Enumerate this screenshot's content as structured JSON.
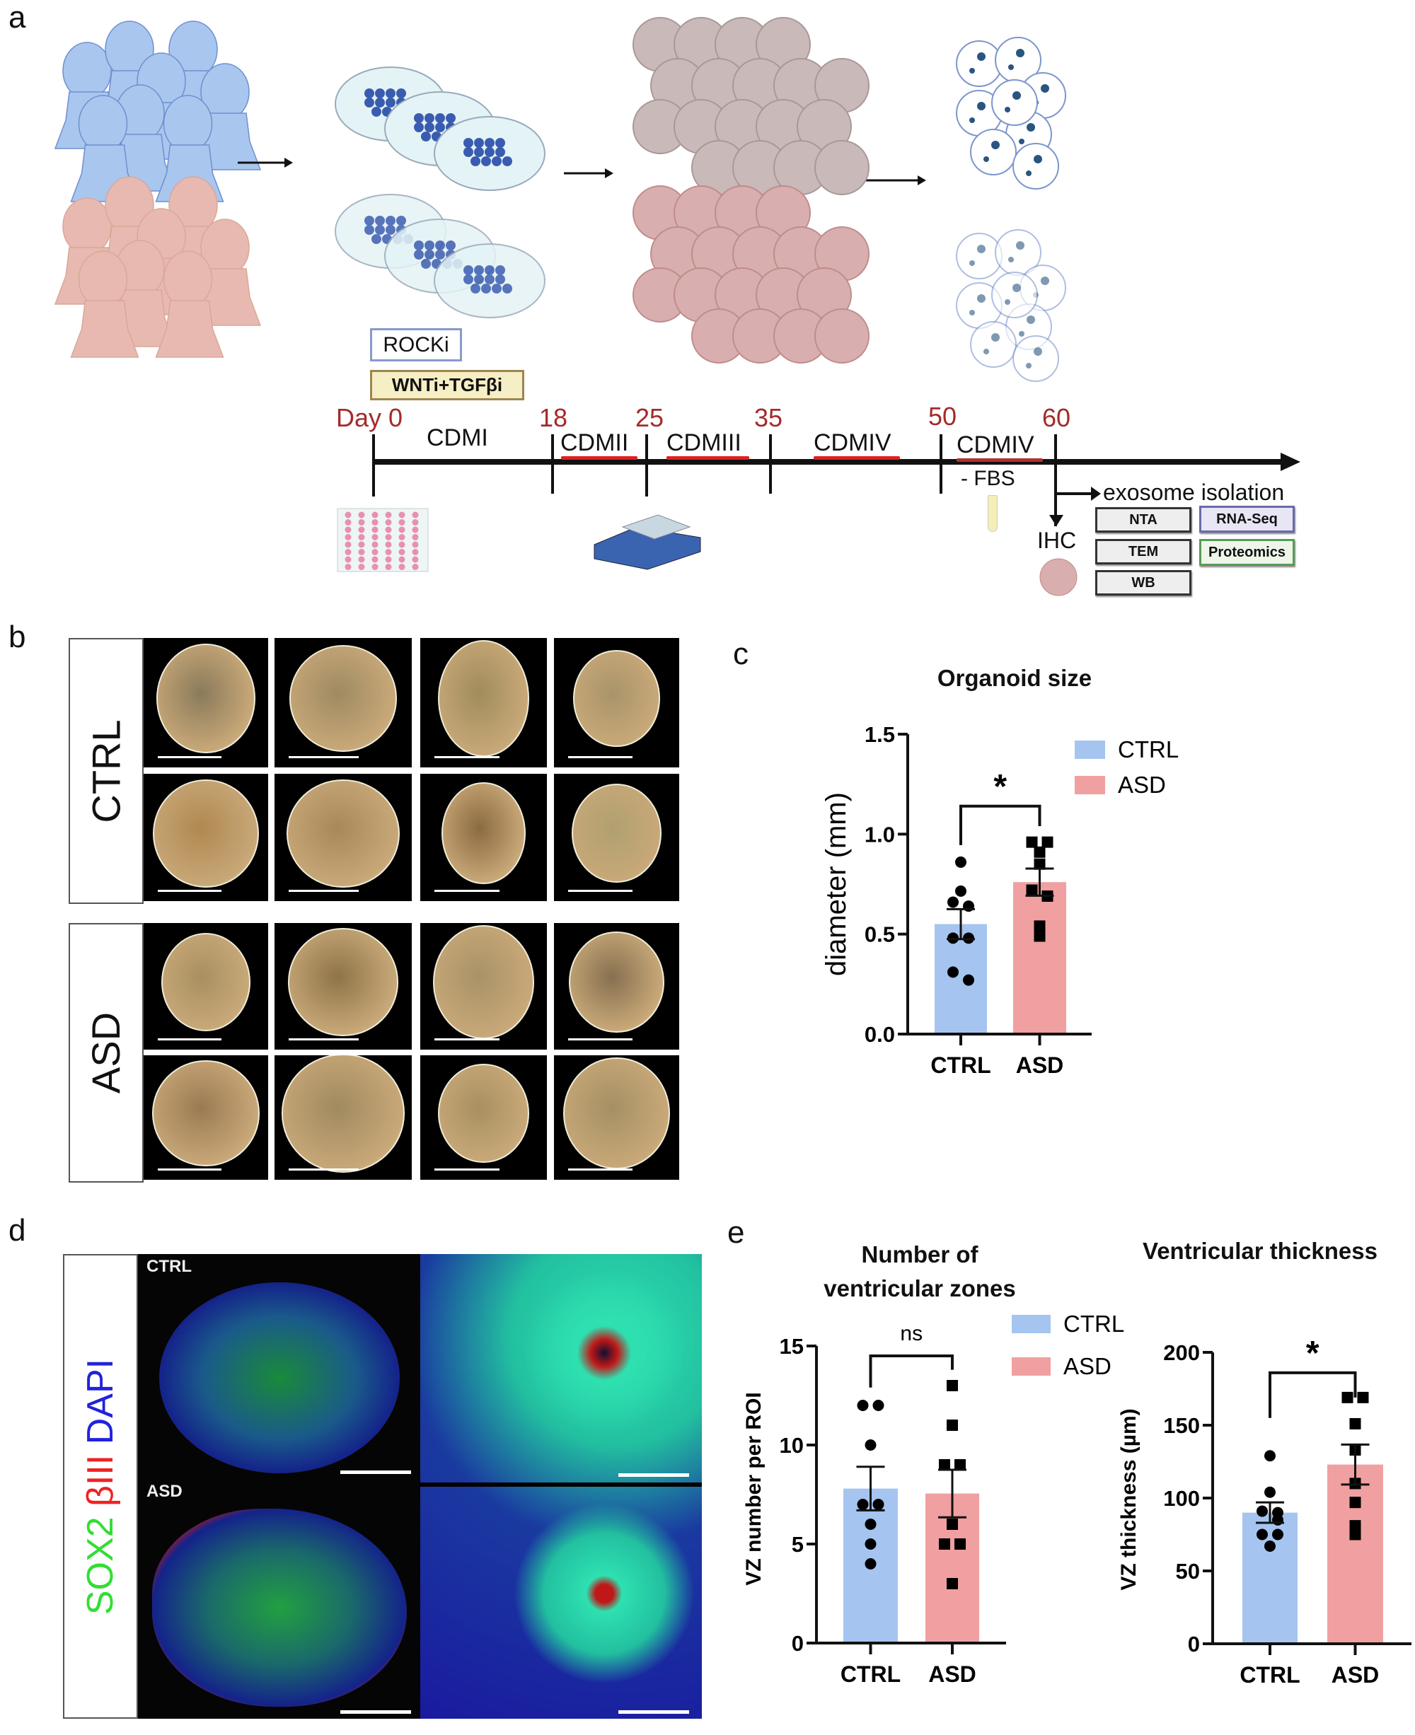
{
  "panels": {
    "a": "a",
    "b": "b",
    "c": "c",
    "d": "d",
    "e": "e"
  },
  "panel_a": {
    "treatments": [
      "ROCKi",
      "WNTi+TGFβi"
    ],
    "timeline": {
      "days": [
        "Day 0",
        "18",
        "25",
        "35",
        "50",
        "60"
      ],
      "stages": [
        "CDMI",
        "CDMII",
        "CDMIII",
        "CDMIV",
        "CDMIV"
      ],
      "fbs_note": "- FBS",
      "ihc": "IHC",
      "exosome": "exosome isolation",
      "assays": [
        "NTA",
        "RNA-Seq",
        "TEM",
        "Proteomics",
        "WB"
      ]
    },
    "colors": {
      "ctrl": "#a9c6ee",
      "asd": "#e8b9b0",
      "day_label": "#a52a2a",
      "stage_bar": "#e02020"
    }
  },
  "panel_b": {
    "groups": [
      "CTRL",
      "ASD"
    ]
  },
  "panel_d": {
    "stain_labels": [
      {
        "text": "SOX2",
        "color": "#33dd33"
      },
      {
        "text": " βIII",
        "color": "#ee2222"
      },
      {
        "text": " DAPI",
        "color": "#2222dd"
      }
    ],
    "groups": [
      "CTRL",
      "ASD"
    ]
  },
  "panel_e": {
    "title": "Number of ventricular zones"
  },
  "chart_data": [
    {
      "type": "bar",
      "title": "Organoid size",
      "ylabel": "diameter (mm)",
      "categories": [
        "CTRL",
        "ASD"
      ],
      "ylim": [
        0,
        1.5
      ],
      "yticks": [
        "0.0",
        "0.5",
        "1.0",
        "1.5"
      ],
      "means": [
        0.55,
        0.76
      ],
      "sem": [
        0.075,
        0.068
      ],
      "points": [
        [
          0.86,
          0.715,
          0.66,
          0.64,
          0.48,
          0.48,
          0.31,
          0.27
        ],
        [
          0.96,
          0.96,
          0.91,
          0.85,
          0.72,
          0.69,
          0.54,
          0.49
        ]
      ],
      "significance": "*",
      "legend": [
        "CTRL",
        "ASD"
      ],
      "legend_position": "top-right",
      "colors": [
        "#a5c5f0",
        "#f0a0a0"
      ]
    },
    {
      "type": "bar",
      "title": "Number of ventricular zones",
      "ylabel": "VZ number per ROI",
      "categories": [
        "CTRL",
        "ASD"
      ],
      "ylim": [
        0,
        15
      ],
      "yticks": [
        "0",
        "5",
        "10",
        "15"
      ],
      "means": [
        7.8,
        7.55
      ],
      "sem": [
        1.1,
        1.2
      ],
      "points": [
        [
          12,
          12,
          10,
          7,
          7,
          6,
          5,
          4
        ],
        [
          13,
          11,
          9,
          9,
          6,
          5,
          5,
          3
        ]
      ],
      "significance": "ns",
      "legend": [
        "CTRL",
        "ASD"
      ],
      "legend_position": "top-right",
      "colors": [
        "#a5c5f0",
        "#f0a0a0"
      ]
    },
    {
      "type": "bar",
      "title": "Ventricular thickness",
      "ylabel": "VZ thickness (µm)",
      "categories": [
        "CTRL",
        "ASD"
      ],
      "ylim": [
        0,
        200
      ],
      "yticks": [
        "0",
        "50",
        "100",
        "150",
        "200"
      ],
      "means": [
        90,
        123
      ],
      "sem": [
        7,
        13.7
      ],
      "points": [
        [
          129,
          104,
          91,
          90,
          85,
          75,
          75,
          67
        ],
        [
          169,
          169,
          151,
          133,
          110,
          97,
          81,
          75
        ]
      ],
      "significance": "*",
      "colors": [
        "#a5c5f0",
        "#f0a0a0"
      ]
    }
  ]
}
